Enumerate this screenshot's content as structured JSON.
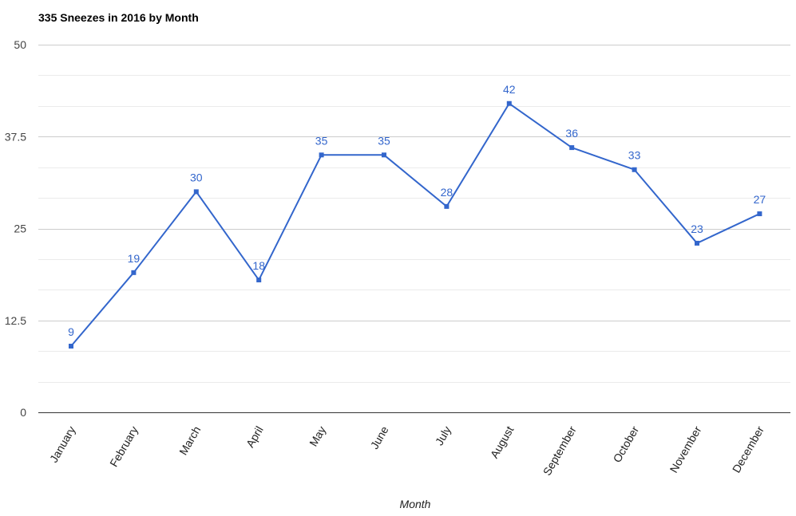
{
  "colors": {
    "series": "#3366cc",
    "major_grid": "#cccccc",
    "minor_grid": "#ebebeb",
    "baseline": "#333333"
  },
  "chart_data": {
    "type": "line",
    "title": "335 Sneezes in 2016 by Month",
    "xlabel": "Month",
    "ylabel": "",
    "categories": [
      "January",
      "February",
      "March",
      "April",
      "May",
      "June",
      "July",
      "August",
      "September",
      "October",
      "November",
      "December"
    ],
    "series": [
      {
        "values": [
          9,
          19,
          30,
          18,
          35,
          35,
          28,
          42,
          36,
          33,
          23,
          27
        ]
      }
    ],
    "ylim": [
      0,
      50
    ],
    "yticks": [
      0,
      12.5,
      25,
      37.5,
      50
    ],
    "ytick_labels": [
      "0",
      "12.5",
      "25",
      "37.5",
      "50"
    ],
    "minor_gridlines": [
      4.17,
      8.33,
      16.67,
      20.83,
      29.17,
      33.33,
      41.67,
      45.83
    ],
    "grid": true,
    "legend": "none",
    "data_labels": true,
    "marker": "square"
  }
}
